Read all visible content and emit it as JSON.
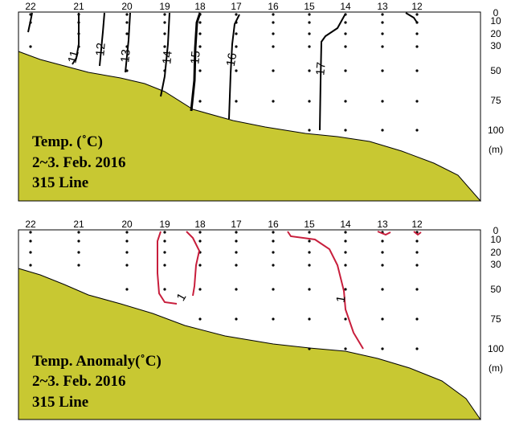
{
  "colors": {
    "seabed": "#c8c832",
    "temp_contour": "#000000",
    "anomaly_contour": "#c81e3c"
  },
  "station_labels": [
    "22",
    "21",
    "20",
    "19",
    "18",
    "17",
    "16",
    "15",
    "14",
    "13",
    "12"
  ],
  "depth_labels": [
    "0",
    "10",
    "20",
    "30",
    "50",
    "75",
    "100"
  ],
  "depth_unit": "(m)",
  "panels": [
    {
      "title_lines": [
        "Temp. (˚C)",
        "2~3. Feb. 2016",
        "315 Line"
      ],
      "contour_labels": [
        "11",
        "12",
        "13",
        "14",
        "15",
        "16",
        "17"
      ]
    },
    {
      "title_lines": [
        "Temp. Anomaly(˚C)",
        "2~3. Feb. 2016",
        "315 Line"
      ],
      "contour_labels": [
        "1",
        "1"
      ]
    }
  ]
}
